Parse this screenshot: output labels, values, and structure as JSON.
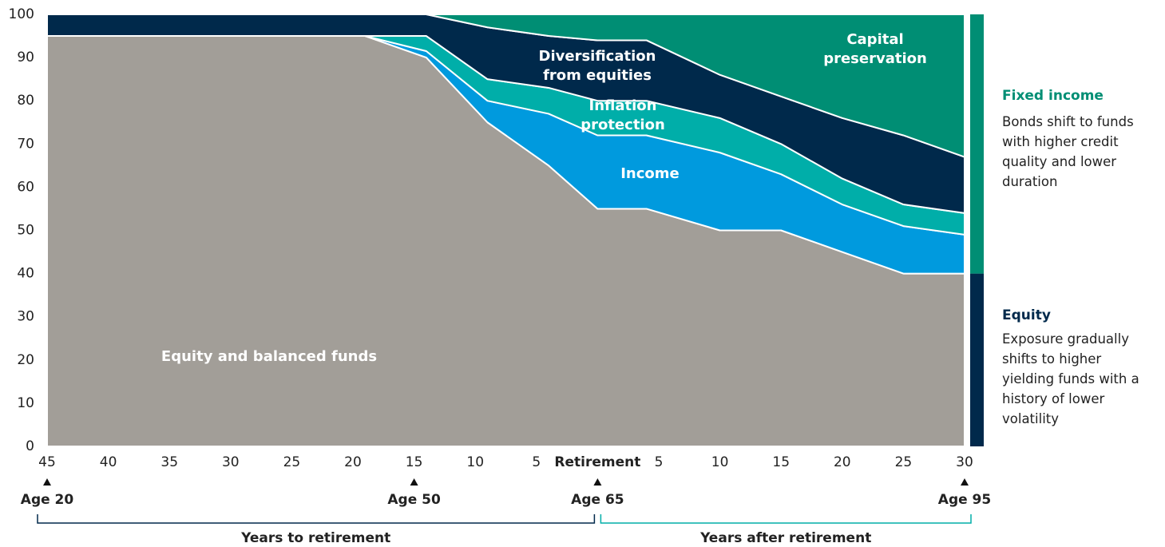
{
  "chart_data": {
    "type": "stacked_area",
    "x": [
      -45,
      -19,
      -14,
      -9,
      -4,
      0,
      4,
      10,
      15,
      20,
      25,
      30
    ],
    "series": [
      {
        "name": "Equity and balanced funds",
        "color": "#a29e98",
        "values": [
          95,
          95,
          90,
          75,
          65,
          55,
          55,
          50,
          50,
          45,
          40,
          40
        ]
      },
      {
        "name": "Income",
        "color": "#009ade",
        "values": [
          0,
          0,
          1.5,
          5,
          12,
          17,
          17,
          18,
          13,
          11,
          11,
          9
        ]
      },
      {
        "name": "Inflation protection",
        "color": "#00aea9",
        "values": [
          0,
          0,
          3.5,
          5,
          6,
          8,
          8,
          8,
          7,
          6,
          5,
          5
        ]
      },
      {
        "name": "Diversification from equities",
        "color": "#00294b",
        "values": [
          5,
          5,
          5,
          12,
          12,
          14,
          14,
          10,
          11,
          14,
          16,
          13
        ]
      },
      {
        "name": "Capital preservation",
        "color": "#008e74",
        "values": [
          0,
          0,
          0,
          3,
          5,
          6,
          6,
          14,
          19,
          24,
          28,
          33
        ]
      }
    ],
    "xlim": [
      -45,
      30
    ],
    "ylim": [
      0,
      100
    ],
    "yticks": [
      0,
      10,
      20,
      30,
      40,
      50,
      60,
      70,
      80,
      90,
      100
    ],
    "xticks": [
      {
        "value": -45,
        "label": "45"
      },
      {
        "value": -40,
        "label": "40"
      },
      {
        "value": -35,
        "label": "35"
      },
      {
        "value": -30,
        "label": "30"
      },
      {
        "value": -25,
        "label": "25"
      },
      {
        "value": -20,
        "label": "20"
      },
      {
        "value": -15,
        "label": "15"
      },
      {
        "value": -10,
        "label": "10"
      },
      {
        "value": -5,
        "label": "5"
      },
      {
        "value": 0,
        "label": "Retirement"
      },
      5,
      10,
      15,
      20,
      25,
      30
    ],
    "age_markers": [
      {
        "x": -45,
        "label": "Age 20"
      },
      {
        "x": -15,
        "label": "Age 50"
      },
      {
        "x": 0,
        "label": "Age 65"
      },
      {
        "x": 30,
        "label": "Age 95"
      }
    ],
    "spans": [
      {
        "label": "Years to retirement",
        "range": [
          -45,
          0
        ],
        "color": "#00294b"
      },
      {
        "label": "Years after retirement",
        "range": [
          0,
          30
        ],
        "color": "#00aea9"
      }
    ],
    "allocation_bar": [
      {
        "name": "Equity",
        "value": 40,
        "color": "#00294b",
        "description": "Exposure gradually shifts to higher yielding funds with a history of lower volatility"
      },
      {
        "name": "Fixed income",
        "value": 60,
        "color": "#008e74",
        "description": "Bonds shift to funds with higher credit quality and lower duration"
      }
    ]
  }
}
